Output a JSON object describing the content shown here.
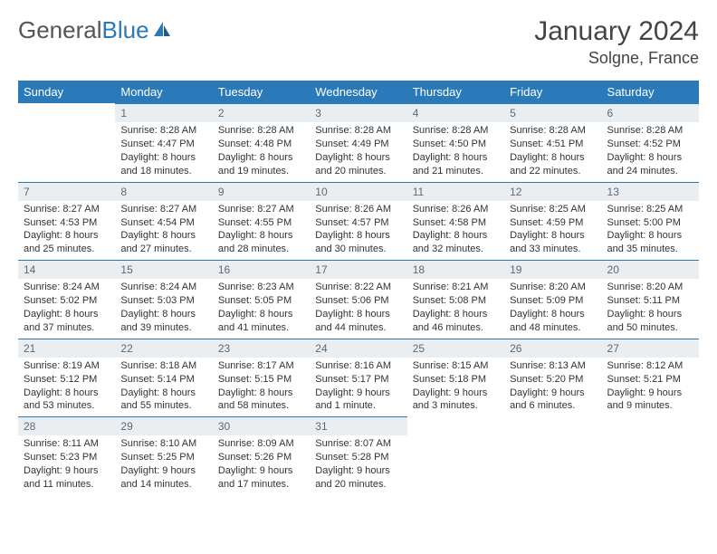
{
  "logo": {
    "text_gray": "General",
    "text_blue": "Blue"
  },
  "title": "January 2024",
  "location": "Solgne, France",
  "colors": {
    "header_bg": "#2a7ab9",
    "header_fg": "#ffffff",
    "daynum_bg": "#ebeef0",
    "daynum_border": "#2a7ab9",
    "daynum_fg": "#5a6a78",
    "text": "#333333"
  },
  "weekdays": [
    "Sunday",
    "Monday",
    "Tuesday",
    "Wednesday",
    "Thursday",
    "Friday",
    "Saturday"
  ],
  "start_offset": 1,
  "days": [
    {
      "n": 1,
      "sunrise": "8:28 AM",
      "sunset": "4:47 PM",
      "daylight": "8 hours and 18 minutes."
    },
    {
      "n": 2,
      "sunrise": "8:28 AM",
      "sunset": "4:48 PM",
      "daylight": "8 hours and 19 minutes."
    },
    {
      "n": 3,
      "sunrise": "8:28 AM",
      "sunset": "4:49 PM",
      "daylight": "8 hours and 20 minutes."
    },
    {
      "n": 4,
      "sunrise": "8:28 AM",
      "sunset": "4:50 PM",
      "daylight": "8 hours and 21 minutes."
    },
    {
      "n": 5,
      "sunrise": "8:28 AM",
      "sunset": "4:51 PM",
      "daylight": "8 hours and 22 minutes."
    },
    {
      "n": 6,
      "sunrise": "8:28 AM",
      "sunset": "4:52 PM",
      "daylight": "8 hours and 24 minutes."
    },
    {
      "n": 7,
      "sunrise": "8:27 AM",
      "sunset": "4:53 PM",
      "daylight": "8 hours and 25 minutes."
    },
    {
      "n": 8,
      "sunrise": "8:27 AM",
      "sunset": "4:54 PM",
      "daylight": "8 hours and 27 minutes."
    },
    {
      "n": 9,
      "sunrise": "8:27 AM",
      "sunset": "4:55 PM",
      "daylight": "8 hours and 28 minutes."
    },
    {
      "n": 10,
      "sunrise": "8:26 AM",
      "sunset": "4:57 PM",
      "daylight": "8 hours and 30 minutes."
    },
    {
      "n": 11,
      "sunrise": "8:26 AM",
      "sunset": "4:58 PM",
      "daylight": "8 hours and 32 minutes."
    },
    {
      "n": 12,
      "sunrise": "8:25 AM",
      "sunset": "4:59 PM",
      "daylight": "8 hours and 33 minutes."
    },
    {
      "n": 13,
      "sunrise": "8:25 AM",
      "sunset": "5:00 PM",
      "daylight": "8 hours and 35 minutes."
    },
    {
      "n": 14,
      "sunrise": "8:24 AM",
      "sunset": "5:02 PM",
      "daylight": "8 hours and 37 minutes."
    },
    {
      "n": 15,
      "sunrise": "8:24 AM",
      "sunset": "5:03 PM",
      "daylight": "8 hours and 39 minutes."
    },
    {
      "n": 16,
      "sunrise": "8:23 AM",
      "sunset": "5:05 PM",
      "daylight": "8 hours and 41 minutes."
    },
    {
      "n": 17,
      "sunrise": "8:22 AM",
      "sunset": "5:06 PM",
      "daylight": "8 hours and 44 minutes."
    },
    {
      "n": 18,
      "sunrise": "8:21 AM",
      "sunset": "5:08 PM",
      "daylight": "8 hours and 46 minutes."
    },
    {
      "n": 19,
      "sunrise": "8:20 AM",
      "sunset": "5:09 PM",
      "daylight": "8 hours and 48 minutes."
    },
    {
      "n": 20,
      "sunrise": "8:20 AM",
      "sunset": "5:11 PM",
      "daylight": "8 hours and 50 minutes."
    },
    {
      "n": 21,
      "sunrise": "8:19 AM",
      "sunset": "5:12 PM",
      "daylight": "8 hours and 53 minutes."
    },
    {
      "n": 22,
      "sunrise": "8:18 AM",
      "sunset": "5:14 PM",
      "daylight": "8 hours and 55 minutes."
    },
    {
      "n": 23,
      "sunrise": "8:17 AM",
      "sunset": "5:15 PM",
      "daylight": "8 hours and 58 minutes."
    },
    {
      "n": 24,
      "sunrise": "8:16 AM",
      "sunset": "5:17 PM",
      "daylight": "9 hours and 1 minute."
    },
    {
      "n": 25,
      "sunrise": "8:15 AM",
      "sunset": "5:18 PM",
      "daylight": "9 hours and 3 minutes."
    },
    {
      "n": 26,
      "sunrise": "8:13 AM",
      "sunset": "5:20 PM",
      "daylight": "9 hours and 6 minutes."
    },
    {
      "n": 27,
      "sunrise": "8:12 AM",
      "sunset": "5:21 PM",
      "daylight": "9 hours and 9 minutes."
    },
    {
      "n": 28,
      "sunrise": "8:11 AM",
      "sunset": "5:23 PM",
      "daylight": "9 hours and 11 minutes."
    },
    {
      "n": 29,
      "sunrise": "8:10 AM",
      "sunset": "5:25 PM",
      "daylight": "9 hours and 14 minutes."
    },
    {
      "n": 30,
      "sunrise": "8:09 AM",
      "sunset": "5:26 PM",
      "daylight": "9 hours and 17 minutes."
    },
    {
      "n": 31,
      "sunrise": "8:07 AM",
      "sunset": "5:28 PM",
      "daylight": "9 hours and 20 minutes."
    }
  ],
  "labels": {
    "sunrise": "Sunrise:",
    "sunset": "Sunset:",
    "daylight": "Daylight:"
  }
}
